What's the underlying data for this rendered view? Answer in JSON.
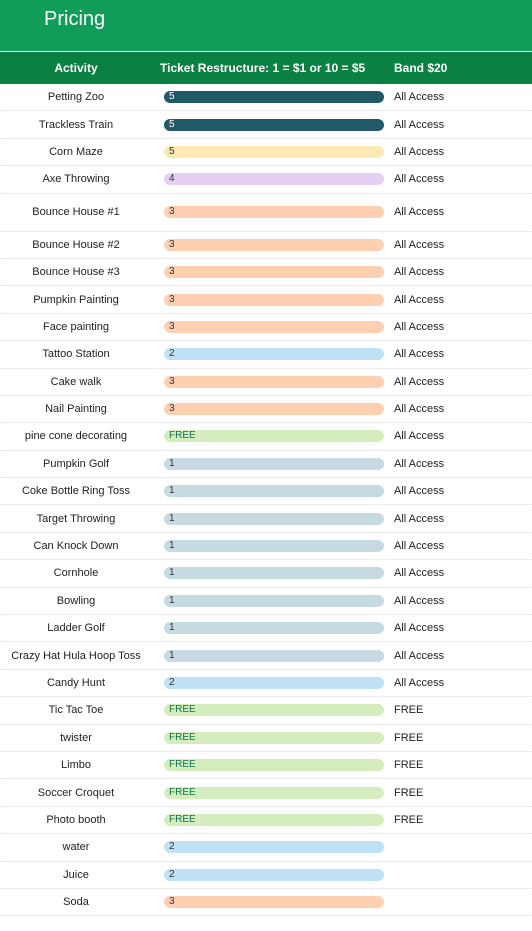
{
  "header": {
    "title": "Pricing"
  },
  "table": {
    "columns": [
      "Activity",
      "Ticket Restructure: 1 = $1 or 10 = $5",
      "Band $20"
    ],
    "rows": [
      {
        "activity": "Petting Zoo",
        "ticket": "5",
        "chip": "#215967",
        "band": "All Access"
      },
      {
        "activity": "Trackless Train",
        "ticket": "5",
        "chip": "#215967",
        "band": "All Access"
      },
      {
        "activity": "Corn Maze",
        "ticket": "5",
        "chip": "#fce8b2",
        "band": "All Access"
      },
      {
        "activity": "Axe Throwing",
        "ticket": "4",
        "chip": "#e6cff2",
        "band": "All Access"
      },
      {
        "activity": "Bounce House #1",
        "ticket": "3",
        "chip": "#ffcfb2",
        "band": "All Access"
      },
      {
        "activity": "Bounce House #2",
        "ticket": "3",
        "chip": "#ffcfb2",
        "band": "All Access"
      },
      {
        "activity": "Bounce House #3",
        "ticket": "3",
        "chip": "#ffcfb2",
        "band": "All Access"
      },
      {
        "activity": "Pumpkin Painting",
        "ticket": "3",
        "chip": "#ffcfb2",
        "band": "All Access"
      },
      {
        "activity": "Face painting",
        "ticket": "3",
        "chip": "#ffcfb2",
        "band": "All Access"
      },
      {
        "activity": "Tattoo Station",
        "ticket": "2",
        "chip": "#bfe1f6",
        "band": "All Access"
      },
      {
        "activity": "Cake walk",
        "ticket": "3",
        "chip": "#ffcfb2",
        "band": "All Access"
      },
      {
        "activity": "Nail Painting",
        "ticket": "3",
        "chip": "#ffcfb2",
        "band": "All Access"
      },
      {
        "activity": "pine cone decorating",
        "ticket": "FREE",
        "chip": "#d4edbc",
        "band": "All Access"
      },
      {
        "activity": "Pumpkin Golf",
        "ticket": "1",
        "chip": "#c6dbe1",
        "band": "All Access"
      },
      {
        "activity": "Coke Bottle Ring Toss",
        "ticket": "1",
        "chip": "#c6dbe1",
        "band": "All Access"
      },
      {
        "activity": "Target Throwing",
        "ticket": "1",
        "chip": "#c6dbe1",
        "band": "All Access"
      },
      {
        "activity": "Can Knock Down",
        "ticket": "1",
        "chip": "#c6dbe1",
        "band": "All Access"
      },
      {
        "activity": "Cornhole",
        "ticket": "1",
        "chip": "#c6dbe1",
        "band": "All Access"
      },
      {
        "activity": "Bowling",
        "ticket": "1",
        "chip": "#c6dbe1",
        "band": "All Access"
      },
      {
        "activity": "Ladder Golf",
        "ticket": "1",
        "chip": "#c6dbe1",
        "band": "All Access"
      },
      {
        "activity": "Crazy Hat Hula Hoop Toss",
        "ticket": "1",
        "chip": "#c6dbe1",
        "band": "All Access"
      },
      {
        "activity": "Candy Hunt",
        "ticket": "2",
        "chip": "#bfe1f6",
        "band": "All Access"
      },
      {
        "activity": "Tic Tac Toe",
        "ticket": "FREE",
        "chip": "#d4edbc",
        "band": "FREE"
      },
      {
        "activity": "twister",
        "ticket": "FREE",
        "chip": "#d4edbc",
        "band": "FREE"
      },
      {
        "activity": "Limbo",
        "ticket": "FREE",
        "chip": "#d4edbc",
        "band": "FREE"
      },
      {
        "activity": "Soccer Croquet",
        "ticket": "FREE",
        "chip": "#d4edbc",
        "band": "FREE"
      },
      {
        "activity": "Photo booth",
        "ticket": "FREE",
        "chip": "#d4edbc",
        "band": "FREE"
      },
      {
        "activity": "water",
        "ticket": "2",
        "chip": "#bfe1f6"
      },
      {
        "activity": "Juice",
        "ticket": "2",
        "chip": "#bfe1f6"
      },
      {
        "activity": "Soda",
        "ticket": "3",
        "chip": "#ffcfb2"
      }
    ]
  }
}
